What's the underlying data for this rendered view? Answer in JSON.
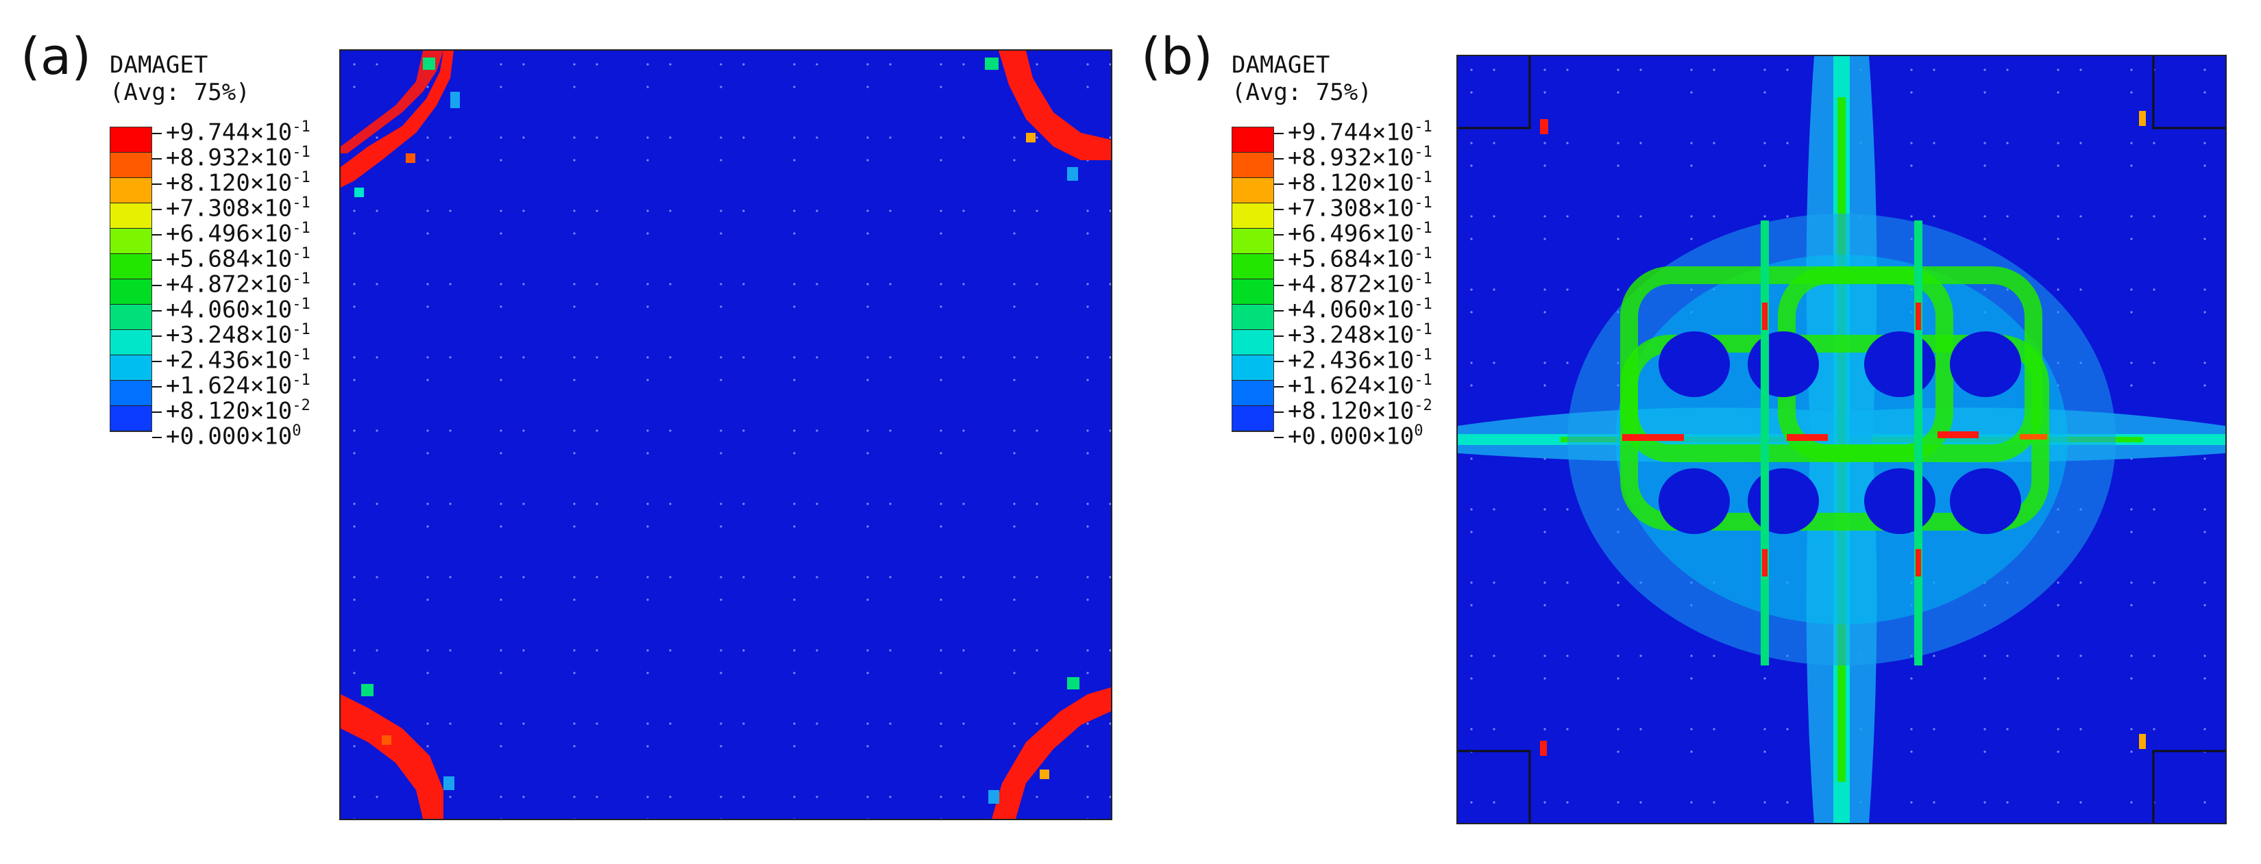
{
  "panels": [
    {
      "label": "(a)",
      "legend": {
        "title": "DAMAGET",
        "subtitle": "(Avg: 75%)",
        "ticks": [
          {
            "mant": "+9.744",
            "exp": "-1"
          },
          {
            "mant": "+8.932",
            "exp": "-1"
          },
          {
            "mant": "+8.120",
            "exp": "-1"
          },
          {
            "mant": "+7.308",
            "exp": "-1"
          },
          {
            "mant": "+6.496",
            "exp": "-1"
          },
          {
            "mant": "+5.684",
            "exp": "-1"
          },
          {
            "mant": "+4.872",
            "exp": "-1"
          },
          {
            "mant": "+4.060",
            "exp": "-1"
          },
          {
            "mant": "+3.248",
            "exp": "-1"
          },
          {
            "mant": "+2.436",
            "exp": "-1"
          },
          {
            "mant": "+1.624",
            "exp": "-1"
          },
          {
            "mant": "+8.120",
            "exp": "-2"
          },
          {
            "mant": "+0.000",
            "exp": "0"
          }
        ]
      }
    },
    {
      "label": "(b)",
      "legend": {
        "title": "DAMAGET",
        "subtitle": "(Avg: 75%)",
        "ticks": [
          {
            "mant": "+9.744",
            "exp": "-1"
          },
          {
            "mant": "+8.932",
            "exp": "-1"
          },
          {
            "mant": "+8.120",
            "exp": "-1"
          },
          {
            "mant": "+7.308",
            "exp": "-1"
          },
          {
            "mant": "+6.496",
            "exp": "-1"
          },
          {
            "mant": "+5.684",
            "exp": "-1"
          },
          {
            "mant": "+4.872",
            "exp": "-1"
          },
          {
            "mant": "+4.060",
            "exp": "-1"
          },
          {
            "mant": "+3.248",
            "exp": "-1"
          },
          {
            "mant": "+2.436",
            "exp": "-1"
          },
          {
            "mant": "+1.624",
            "exp": "-1"
          },
          {
            "mant": "+8.120",
            "exp": "-2"
          },
          {
            "mant": "+0.000",
            "exp": "0"
          }
        ]
      }
    }
  ],
  "colors": {
    "scale": [
      "#ff0000",
      "#ff5a00",
      "#ffaa00",
      "#e6f000",
      "#7cf500",
      "#22e600",
      "#00dd22",
      "#00e07a",
      "#00e6c8",
      "#00bff0",
      "#0072ff",
      "#0b3cff"
    ],
    "background": "#0b16d6",
    "damage_high": "#ff1a10",
    "damage_mid": "#00e07a",
    "damage_low": "#18a4f0",
    "damage_green": "#22e600"
  }
}
